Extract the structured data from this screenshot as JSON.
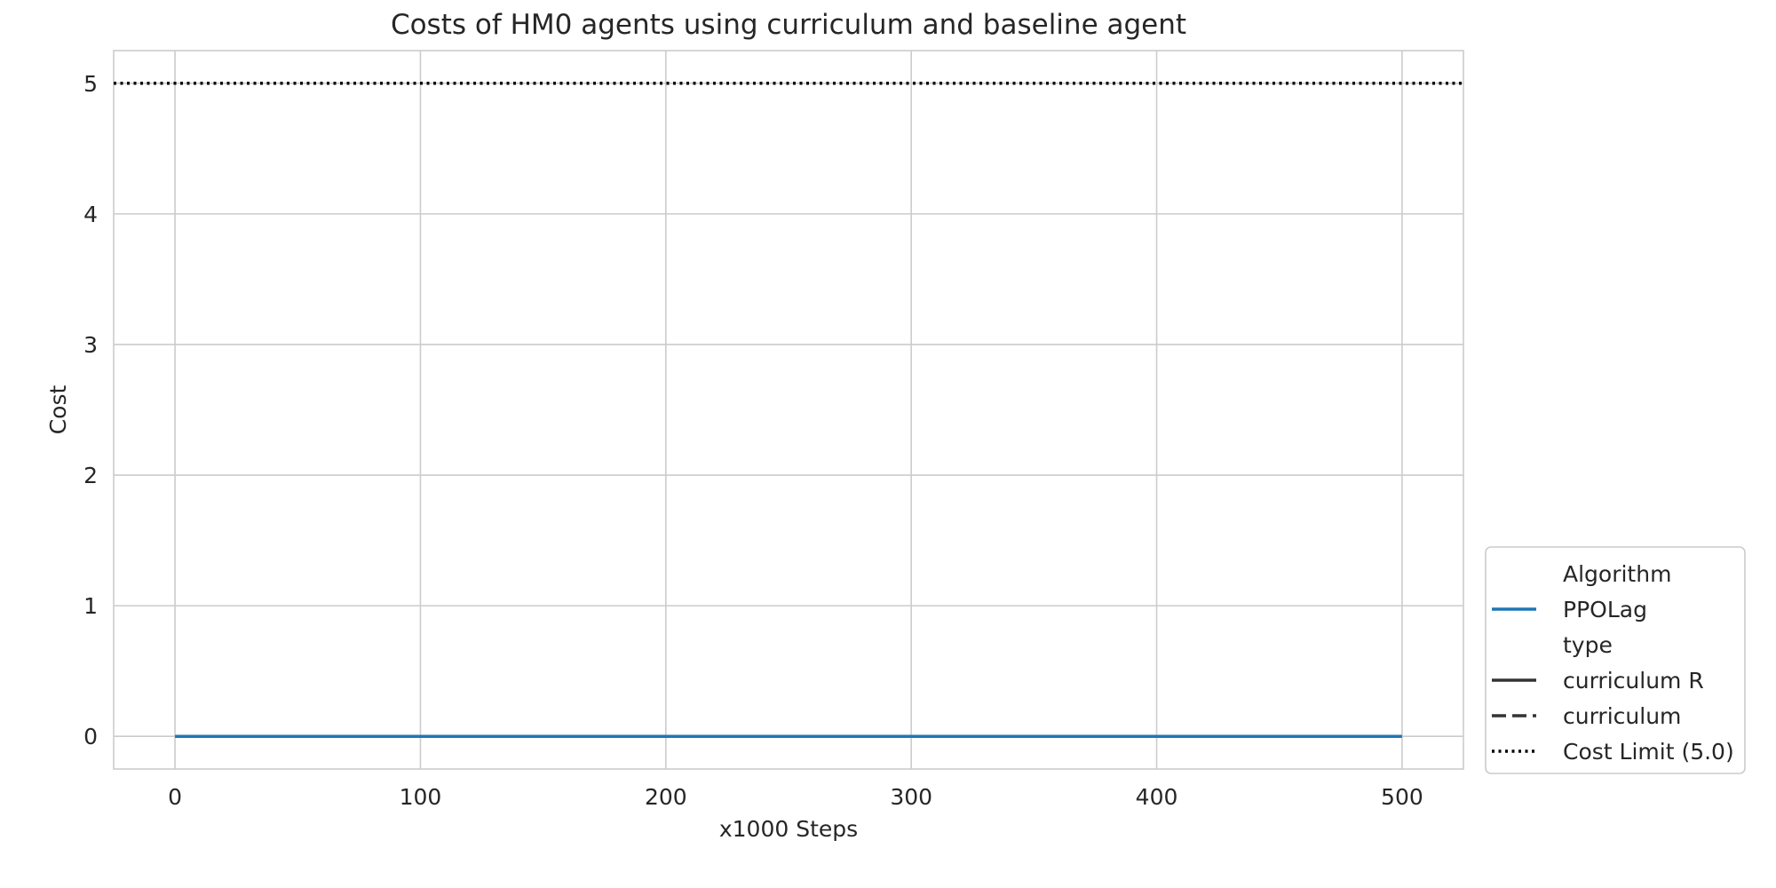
{
  "chart_data": {
    "type": "line",
    "title": "Costs of HM0 agents using curriculum and baseline agent",
    "xlabel": "x1000 Steps",
    "ylabel": "Cost",
    "xlim": [
      -25,
      525
    ],
    "ylim": [
      -0.25,
      5.25
    ],
    "xticks": [
      0,
      100,
      200,
      300,
      400,
      500
    ],
    "yticks": [
      0,
      1,
      2,
      3,
      4,
      5
    ],
    "grid": true,
    "legend_position": "lower-right-outside",
    "series": [
      {
        "name": "PPOLag",
        "type": "curriculum R",
        "color": "#1f77b4",
        "x": [
          0,
          50,
          100,
          150,
          200,
          250,
          300,
          350,
          400,
          450,
          500
        ],
        "y": [
          0,
          0,
          0,
          0,
          0,
          0,
          0,
          0,
          0,
          0,
          0
        ]
      }
    ],
    "reference_lines": [
      {
        "name": "Cost Limit (5.0)",
        "y": 5.0,
        "style": "dotted",
        "color": "#000000"
      }
    ],
    "legend": {
      "group1_title": "Algorithm",
      "group1_items": [
        {
          "label": "PPOLag",
          "style": "solid",
          "color": "#1f77b4"
        }
      ],
      "group2_title": "type",
      "group2_items": [
        {
          "label": "curriculum R",
          "style": "solid",
          "color": "#333333"
        },
        {
          "label": "curriculum",
          "style": "dashed",
          "color": "#333333"
        },
        {
          "label": "Cost Limit (5.0)",
          "style": "dotted",
          "color": "#000000"
        }
      ]
    }
  }
}
